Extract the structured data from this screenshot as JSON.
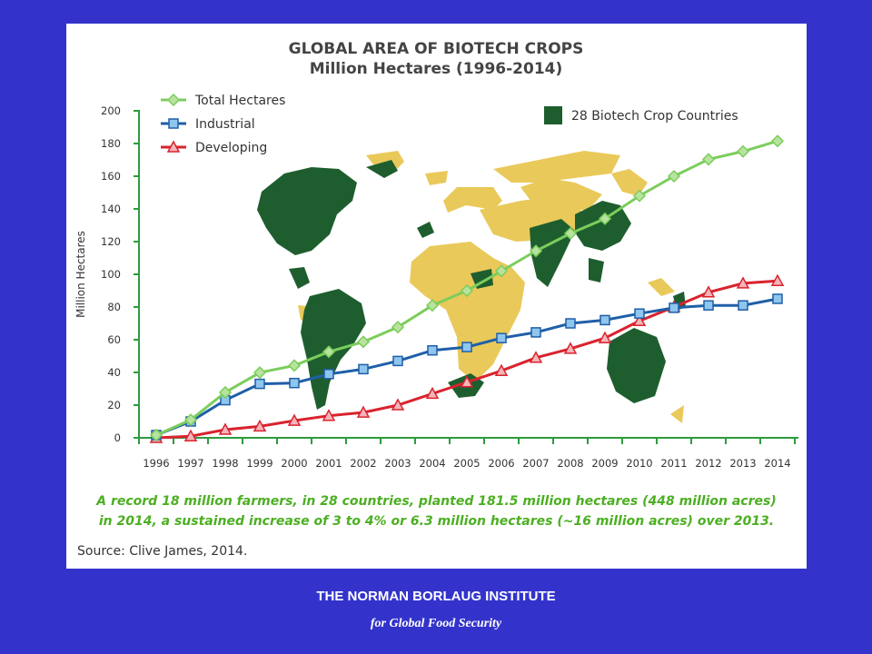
{
  "chart_data": {
    "type": "line",
    "title": "GLOBAL AREA OF BIOTECH CROPS",
    "subtitle": "Million Hectares (1996-2014)",
    "xlabel": "",
    "ylabel": "Million Hectares",
    "ylim": [
      0,
      200
    ],
    "yticks": [
      0,
      20,
      40,
      60,
      80,
      100,
      120,
      140,
      160,
      180,
      200
    ],
    "x": [
      "1996",
      "1997",
      "1998",
      "1999",
      "2000",
      "2001",
      "2002",
      "2003",
      "2004",
      "2005",
      "2006",
      "2007",
      "2008",
      "2009",
      "2010",
      "2011",
      "2012",
      "2013",
      "2014"
    ],
    "series": [
      {
        "name": "Total Hectares",
        "color": "#7ccd5c",
        "marker": "diamond",
        "values": [
          1.7,
          11,
          27.8,
          39.9,
          44.2,
          52.6,
          58.7,
          67.7,
          81,
          90,
          102,
          114.3,
          125,
          134,
          148,
          160,
          170.3,
          175.2,
          181.5
        ]
      },
      {
        "name": "Industrial",
        "color": "#1f5fa8",
        "marker": "square",
        "values": [
          1.7,
          10,
          23,
          33,
          33.5,
          39,
          42,
          47,
          53.5,
          55.5,
          61,
          64.5,
          70,
          72,
          76,
          79.5,
          81,
          81,
          85
        ]
      },
      {
        "name": "Developing",
        "color": "#d9232e",
        "marker": "triangle",
        "values": [
          0,
          1,
          5,
          7,
          10.5,
          13.5,
          15.5,
          20,
          27,
          34,
          41,
          49,
          54.5,
          61,
          71.5,
          80,
          89,
          94.5,
          96
        ]
      }
    ],
    "grid": false,
    "legend_position": "top-left",
    "map_legend": "28 Biotech Crop Countries",
    "map_colors": {
      "biotech": "#1e5e2e",
      "other": "#e9c95a"
    }
  },
  "note_line1": "A record 18 million farmers, in 28 countries, planted 181.5 million hectares (448 million acres)",
  "note_line2": "in 2014, a sustained increase of 3 to 4% or 6.3 million hectares (~16 million acres) over 2013.",
  "source": "Source: Clive James, 2014.",
  "footer_institute": "THE NORMAN BORLAUG INSTITUTE",
  "footer_sub": "for Global Food Security"
}
